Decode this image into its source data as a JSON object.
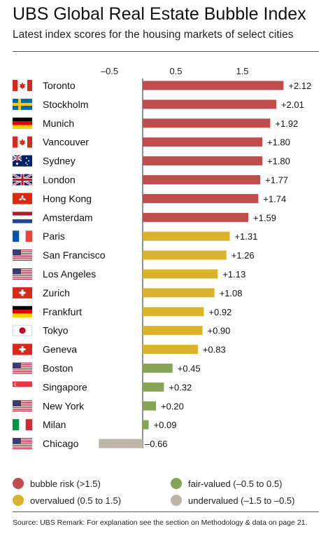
{
  "title": "UBS Global Real Estate Bubble Index",
  "subtitle": "Latest index scores for the housing markets of select cities",
  "source": "Source: UBS  Remark: For explanation see the section on Methodology & data on page 21.",
  "colors": {
    "bubble": "#bf4d4d",
    "overvalued": "#d9b32c",
    "fair": "#86a356",
    "undervalued": "#bdb5a8"
  },
  "legend": [
    {
      "key": "bubble",
      "label": "bubble risk (>1.5)"
    },
    {
      "key": "fair",
      "label": "fair-valued (–0.5 to 0.5)"
    },
    {
      "key": "overvalued",
      "label": "overvalued (0.5 to 1.5)"
    },
    {
      "key": "undervalued",
      "label": "undervalued (–1.5 to –0.5)"
    }
  ],
  "chart_data": {
    "type": "bar",
    "orientation": "horizontal",
    "title": "UBS Global Real Estate Bubble Index",
    "subtitle": "Latest index scores for the housing markets of select cities",
    "xlim": [
      -0.5,
      2.0
    ],
    "xticks": [
      "–0.5",
      "0.5",
      "1.5"
    ],
    "xtick_values": [
      -0.5,
      0.5,
      1.5
    ],
    "categories": [
      "Toronto",
      "Stockholm",
      "Munich",
      "Vancouver",
      "Sydney",
      "London",
      "Hong Kong",
      "Amsterdam",
      "Paris",
      "San Francisco",
      "Los Angeles",
      "Zurich",
      "Frankfurt",
      "Tokyo",
      "Geneva",
      "Boston",
      "Singapore",
      "New York",
      "Milan",
      "Chicago"
    ],
    "values": [
      2.12,
      2.01,
      1.92,
      1.8,
      1.8,
      1.77,
      1.74,
      1.59,
      1.31,
      1.26,
      1.13,
      1.08,
      0.92,
      0.9,
      0.83,
      0.45,
      0.32,
      0.2,
      0.09,
      -0.66
    ],
    "value_labels": [
      "+2.12",
      "+2.01",
      "+1.92",
      "+1.80",
      "+1.80",
      "+1.77",
      "+1.74",
      "+1.59",
      "+1.31",
      "+1.26",
      "+1.13",
      "+1.08",
      "+0.92",
      "+0.90",
      "+0.83",
      "+0.45",
      "+0.32",
      "+0.20",
      "+0.09",
      "–0.66"
    ],
    "categories_class": [
      "bubble",
      "bubble",
      "bubble",
      "bubble",
      "bubble",
      "bubble",
      "bubble",
      "bubble",
      "overvalued",
      "overvalued",
      "overvalued",
      "overvalued",
      "overvalued",
      "overvalued",
      "overvalued",
      "fair",
      "fair",
      "fair",
      "fair",
      "undervalued"
    ],
    "flags": [
      "canada-flag-icon",
      "sweden-flag-icon",
      "germany-flag-icon",
      "canada-flag-icon",
      "australia-flag-icon",
      "uk-flag-icon",
      "hong-kong-flag-icon",
      "netherlands-flag-icon",
      "france-flag-icon",
      "usa-flag-icon",
      "usa-flag-icon",
      "switzerland-flag-icon",
      "germany-flag-icon",
      "japan-flag-icon",
      "switzerland-flag-icon",
      "usa-flag-icon",
      "singapore-flag-icon",
      "usa-flag-icon",
      "italy-flag-icon",
      "usa-flag-icon"
    ],
    "grid": false,
    "legend_position": "bottom"
  }
}
